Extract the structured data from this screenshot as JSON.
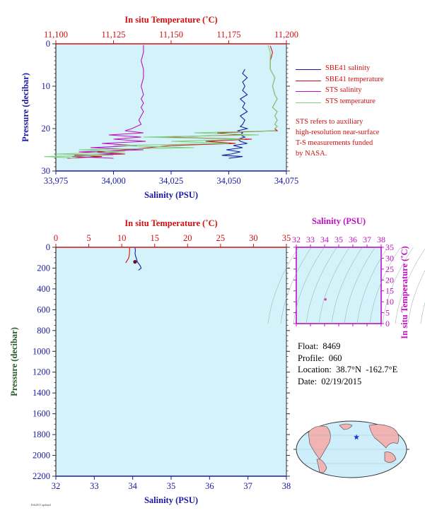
{
  "colors": {
    "bg": "#d4f2f9",
    "red": "#d01010",
    "blue": "#1a1aa0",
    "magenta": "#c010c0",
    "green": "#7fd07f",
    "land": "#f2b3b3",
    "ocean": "#cfeefb"
  },
  "chart_data": [
    {
      "type": "line",
      "panel": "near-surface profile",
      "x_top_label": "In situ Temperature (˚C)",
      "x_top_range": [
        11.1,
        11.2
      ],
      "x_top_ticks": [
        "11,100",
        "11,125",
        "11,150",
        "11,175",
        "11,200"
      ],
      "x_bottom_label": "Salinity (PSU)",
      "x_bottom_range": [
        33.975,
        34.075
      ],
      "x_bottom_ticks": [
        "33,975",
        "34,000",
        "34,025",
        "34,050",
        "34,075"
      ],
      "ylabel": "Pressure (decibar)",
      "ylim": [
        0,
        30
      ],
      "y_ticks": [
        "0",
        "10",
        "20",
        "30"
      ],
      "series": [
        {
          "name": "SBE41 salinity",
          "axis": "salinity",
          "color": "#1a1aa0",
          "x": [
            34.057,
            34.056,
            34.058,
            34.056,
            34.057,
            34.056,
            34.058,
            34.055,
            34.057,
            34.056,
            34.058,
            34.055,
            34.057,
            34.056,
            34.055,
            34.058,
            34.054,
            34.056,
            34.055,
            34.057,
            34.054,
            34.055,
            34.058,
            34.052,
            34.056,
            34.049,
            34.055,
            34.051,
            34.047,
            34.056,
            34.05
          ],
          "y": [
            6,
            7,
            8,
            9,
            10,
            11,
            12,
            13,
            14,
            15,
            16,
            17,
            18,
            19,
            19.5,
            20,
            20.5,
            21,
            21.5,
            22,
            22.5,
            23,
            23.5,
            24,
            24.5,
            25,
            25.5,
            26,
            26.3,
            26.6,
            27
          ]
        },
        {
          "name": "SBE41 temperature",
          "axis": "temperature",
          "color": "#d01010",
          "x": [
            11.193,
            11.194,
            11.193,
            11.193,
            11.195,
            11.194,
            11.195,
            11.196,
            11.195,
            11.194,
            11.196,
            11.195,
            11.196,
            11.195,
            11.196,
            11.195,
            11.196,
            11.17,
            11.18,
            11.145,
            11.185,
            11.165,
            11.178,
            11.15,
            11.14,
            11.13,
            11.118,
            11.13,
            11.108,
            11.12,
            11.105
          ],
          "y": [
            0.5,
            2,
            4,
            6,
            8,
            10,
            12,
            13,
            14,
            15,
            16,
            17,
            18,
            19,
            19.5,
            20,
            20.5,
            21,
            21.5,
            22,
            22.5,
            23,
            23.5,
            24,
            24.5,
            25,
            25.5,
            26,
            26.3,
            26.6,
            27
          ]
        },
        {
          "name": "STS salinity",
          "axis": "salinity",
          "color": "#c010c0",
          "x": [
            34.013,
            34.013,
            34.012,
            34.013,
            34.013,
            34.012,
            34.013,
            34.012,
            34.013,
            34.012,
            34.013,
            34.012,
            34.011,
            34.012,
            34.01,
            34.008,
            34.005,
            34.013,
            33.998,
            34.012,
            34.0,
            34.014,
            33.995,
            34.01,
            33.99,
            34.013,
            33.985,
            34.002,
            33.99,
            33.982,
            34.0
          ],
          "y": [
            0.3,
            2,
            4,
            6,
            8,
            10,
            12,
            13,
            14,
            15,
            16,
            17,
            18,
            19,
            19.5,
            20,
            20.5,
            21,
            21.5,
            22,
            22.5,
            23,
            23.5,
            24,
            24.5,
            25,
            25.5,
            26,
            26.3,
            26.6,
            27
          ]
        },
        {
          "name": "STS temperature",
          "axis": "temperature",
          "color": "#7fd07f",
          "x": [
            11.192,
            11.193,
            11.193,
            11.193,
            11.195,
            11.194,
            11.195,
            11.196,
            11.195,
            11.194,
            11.196,
            11.195,
            11.196,
            11.195,
            11.196,
            11.195,
            11.195,
            11.16,
            11.188,
            11.138,
            11.182,
            11.15,
            11.175,
            11.125,
            11.16,
            11.11,
            11.13,
            11.1,
            11.125,
            11.095,
            11.11
          ],
          "y": [
            0.3,
            2,
            4,
            6,
            8,
            10,
            12,
            13,
            14,
            15,
            16,
            17,
            18,
            19,
            19.5,
            20,
            20.5,
            21,
            21.5,
            22,
            22.5,
            23,
            23.5,
            24,
            24.5,
            25,
            25.5,
            26,
            26.3,
            26.6,
            27
          ]
        }
      ]
    },
    {
      "type": "line",
      "panel": "full profile",
      "x_top_label": "In situ Temperature (˚C)",
      "x_top_range": [
        0,
        35
      ],
      "x_top_ticks": [
        "0",
        "5",
        "10",
        "15",
        "20",
        "25",
        "30",
        "35"
      ],
      "x_bottom_label": "Salinity (PSU)",
      "x_bottom_range": [
        32,
        38
      ],
      "x_bottom_ticks": [
        "32",
        "33",
        "34",
        "35",
        "36",
        "37",
        "38"
      ],
      "ylabel": "Pressure (decibar)",
      "ylim": [
        0,
        2200
      ],
      "y_ticks": [
        "0",
        "200",
        "400",
        "600",
        "800",
        "1000",
        "1200",
        "1400",
        "1600",
        "1800",
        "2000",
        "2200"
      ],
      "series": [
        {
          "name": "salinity",
          "axis": "salinity",
          "color": "#1a1aa0",
          "x": [
            34.06,
            34.07,
            34.06,
            34.08,
            34.1,
            34.12,
            34.16,
            34.2,
            34.22,
            34.15
          ],
          "y": [
            5,
            30,
            60,
            90,
            110,
            140,
            160,
            180,
            200,
            220
          ]
        },
        {
          "name": "temperature",
          "axis": "temperature",
          "color": "#d01010",
          "x": [
            11.19,
            11.19,
            11.18,
            11.1,
            11.0,
            10.8,
            10.6
          ],
          "y": [
            5,
            30,
            60,
            90,
            110,
            130,
            150
          ]
        }
      ],
      "marker": {
        "salinity": 34.06,
        "temperature": 11.0,
        "pressure": 140
      }
    },
    {
      "type": "scatter",
      "panel": "T-S diagram",
      "x_top_label": "Salinity (PSU)",
      "x_range": [
        32,
        38
      ],
      "x_ticks": [
        "32",
        "33",
        "34",
        "35",
        "36",
        "37",
        "38"
      ],
      "ylabel": "In situ Temperature (˚C)",
      "ylim": [
        0,
        35
      ],
      "y_ticks": [
        "0",
        "5",
        "10",
        "15",
        "20",
        "25",
        "30",
        "35"
      ],
      "points": [
        {
          "x": 34.06,
          "y": 11.1
        }
      ]
    }
  ],
  "legend": [
    {
      "label": "SBE41 salinity",
      "color": "#1a1aa0"
    },
    {
      "label": "SBE41 temperature",
      "color": "#d01010"
    },
    {
      "label": "STS salinity",
      "color": "#c010c0"
    },
    {
      "label": "STS temperature",
      "color": "#7fd07f"
    }
  ],
  "note_lines": [
    "STS refers to auxiliary",
    "high-resolution near-surface",
    "T-S measurements funded",
    "by NASA."
  ],
  "info": {
    "float": "Float:  8469",
    "profile": "Profile:  060",
    "location": "Location:  38.7°N  -162.7°E",
    "date": "Date:  02/19/2015"
  },
  "map": {
    "float_position": {
      "lat": 38.7,
      "lon": -162.7
    }
  },
  "footer_tiny": "Feb2015 updated"
}
